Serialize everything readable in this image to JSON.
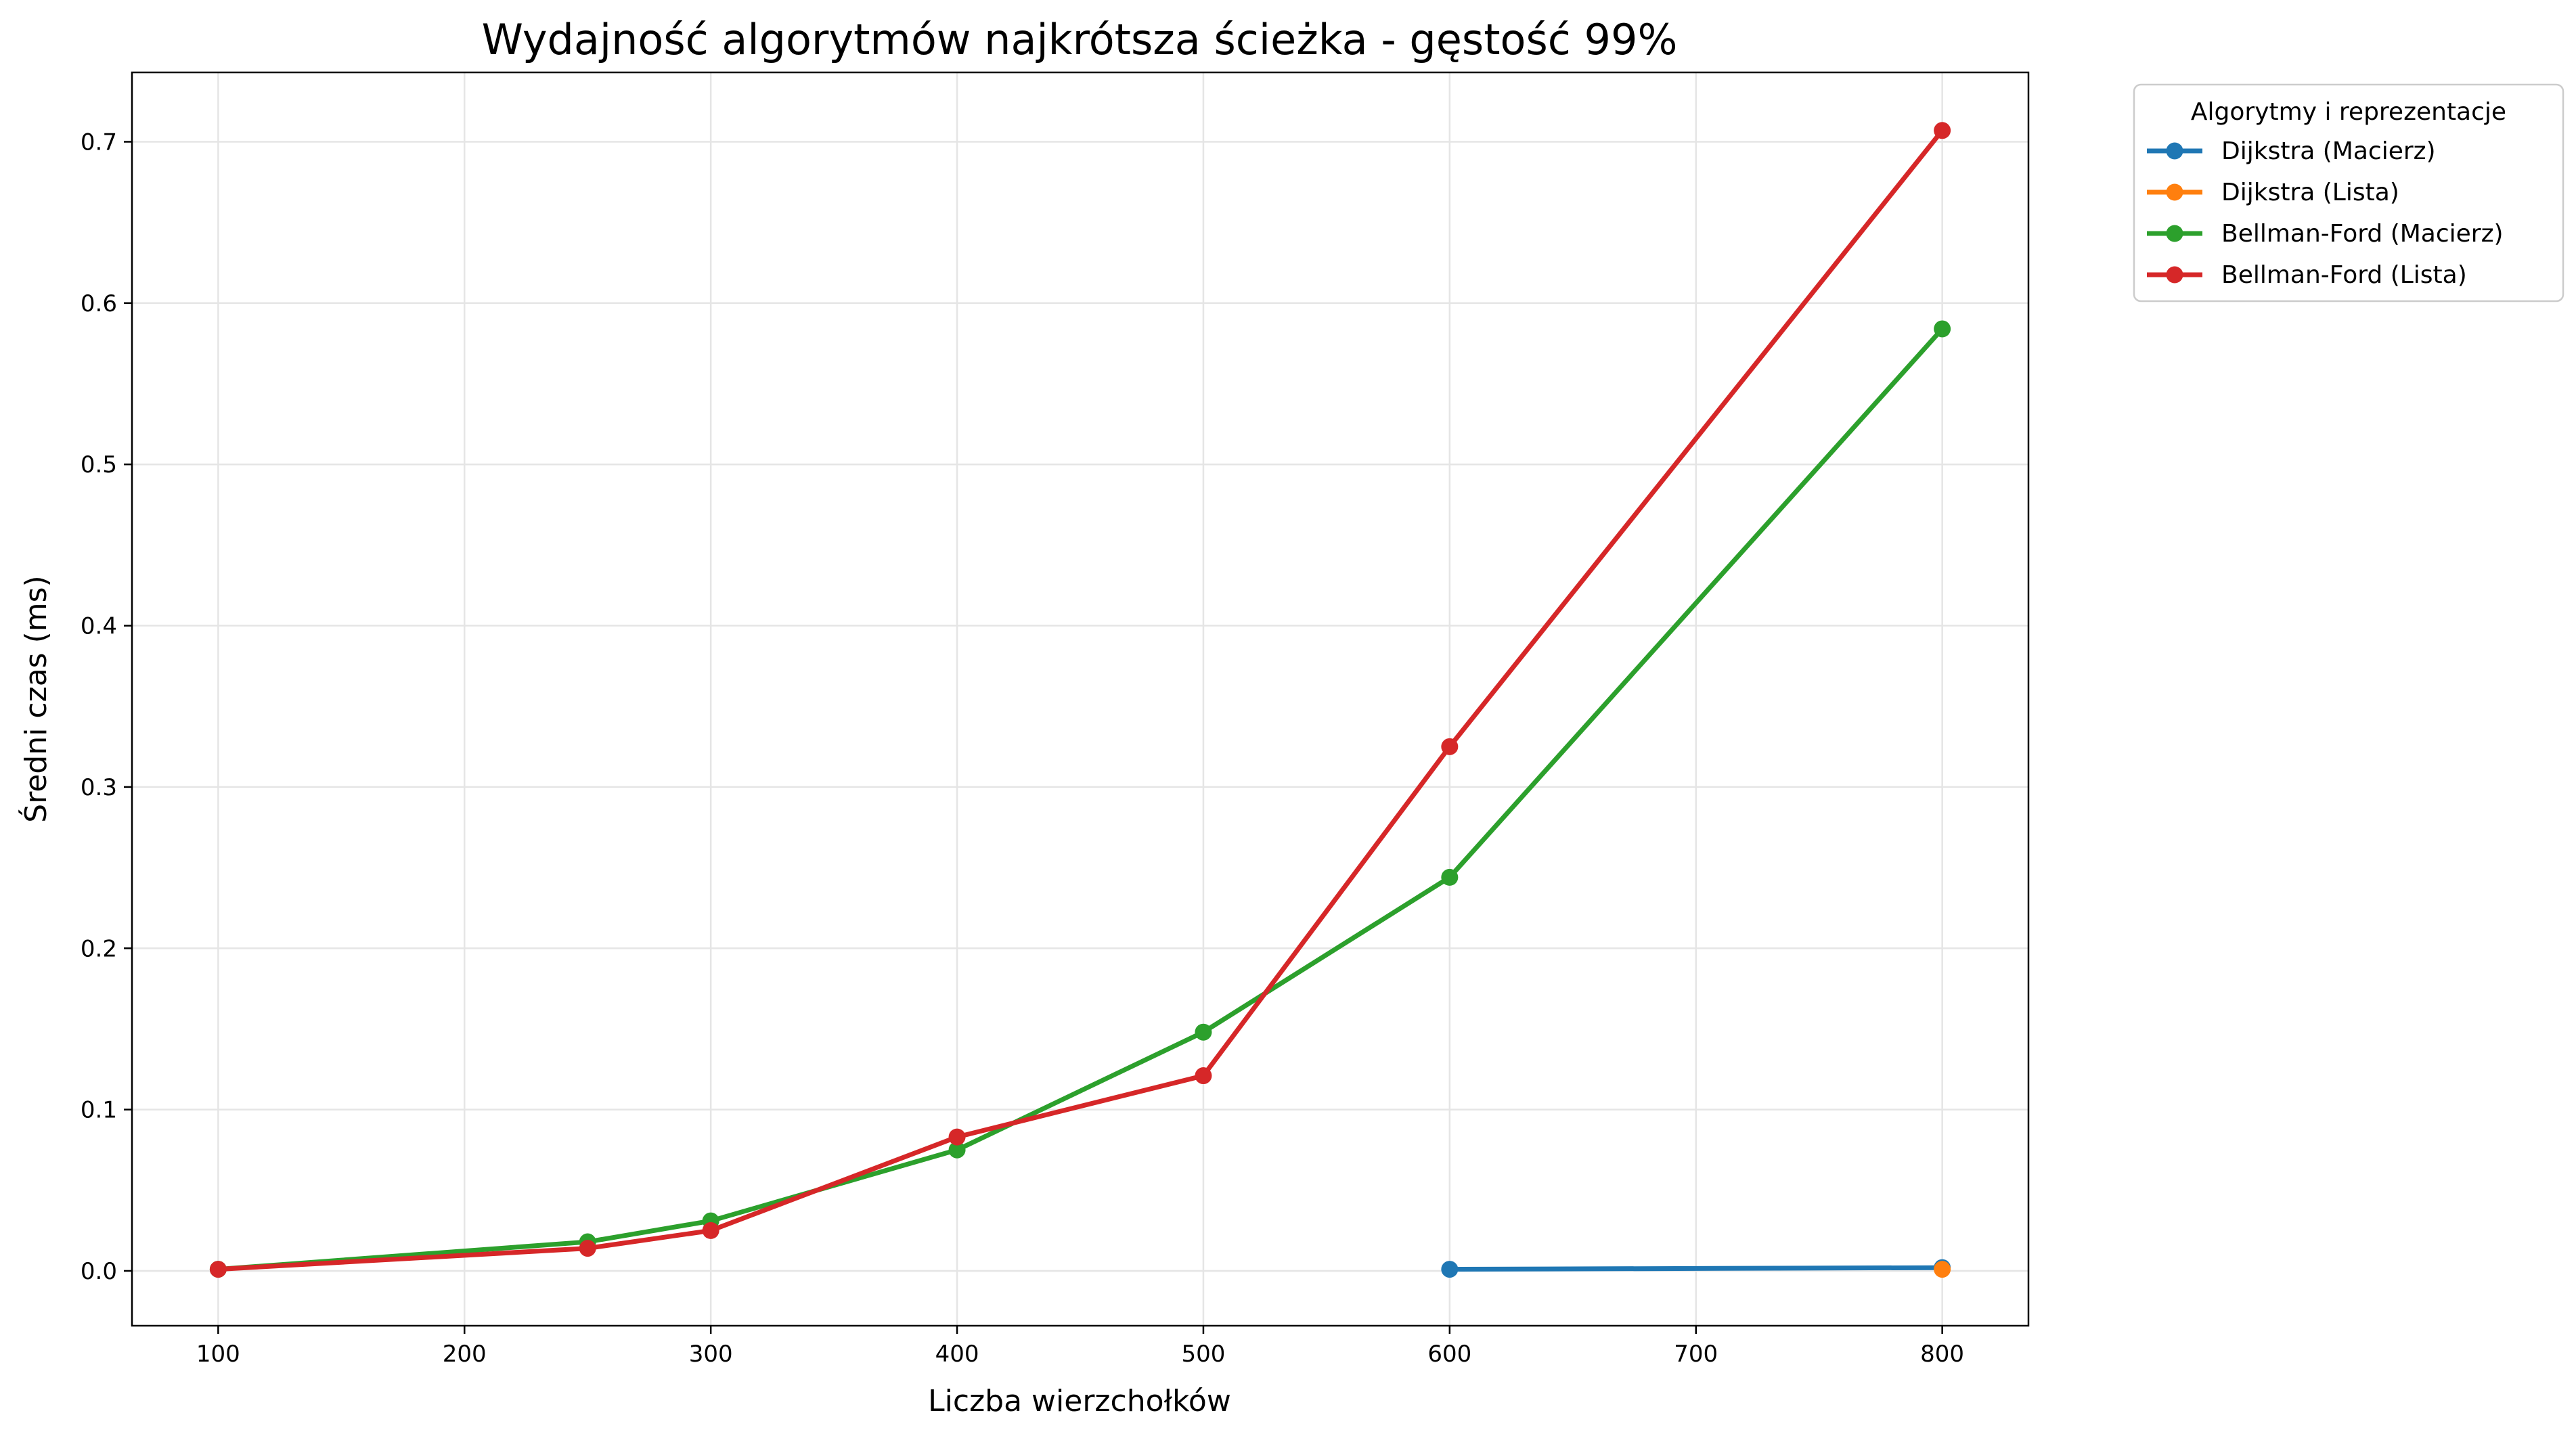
{
  "chart_data": {
    "type": "line",
    "title": "Wydajność algorytmów najkrótsza ścieżka - gęstość 99%",
    "xlabel": "Liczba wierzchołków",
    "ylabel": "Średni czas (ms)",
    "xlim": [
      65,
      835
    ],
    "ylim": [
      -0.034,
      0.743
    ],
    "xticks": [
      100,
      200,
      300,
      400,
      500,
      600,
      700,
      800
    ],
    "yticks": [
      0.0,
      0.1,
      0.2,
      0.3,
      0.4,
      0.5,
      0.6,
      0.7
    ],
    "xtick_labels": [
      "100",
      "200",
      "300",
      "400",
      "500",
      "600",
      "700",
      "800"
    ],
    "ytick_labels": [
      "0.0",
      "0.1",
      "0.2",
      "0.3",
      "0.4",
      "0.5",
      "0.6",
      "0.7"
    ],
    "grid": true,
    "legend": {
      "title": "Algorytmy i reprezentacje",
      "placement": "outside-top-right"
    },
    "series": [
      {
        "name": "Dijkstra (Macierz)",
        "color": "#1f77b4",
        "x": [
          600,
          800
        ],
        "y": [
          0.001,
          0.002
        ]
      },
      {
        "name": "Dijkstra (Lista)",
        "color": "#ff7f0e",
        "x": [
          800
        ],
        "y": [
          0.001
        ]
      },
      {
        "name": "Bellman-Ford (Macierz)",
        "color": "#2ca02c",
        "x": [
          100,
          250,
          300,
          400,
          500,
          600,
          800
        ],
        "y": [
          0.001,
          0.018,
          0.031,
          0.075,
          0.148,
          0.244,
          0.584
        ]
      },
      {
        "name": "Bellman-Ford (Lista)",
        "color": "#d62728",
        "x": [
          100,
          250,
          300,
          400,
          500,
          600,
          800
        ],
        "y": [
          0.001,
          0.014,
          0.025,
          0.083,
          0.121,
          0.325,
          0.707
        ]
      }
    ]
  }
}
